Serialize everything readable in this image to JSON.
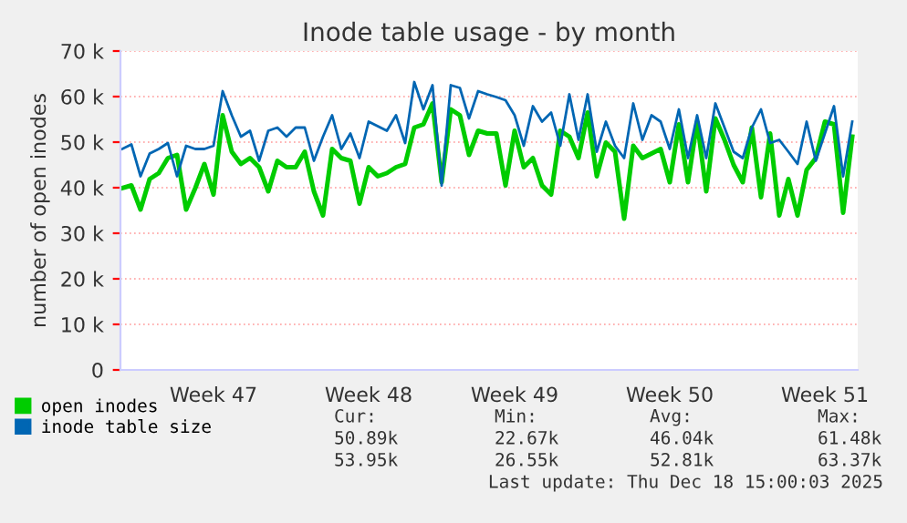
{
  "chart_data": {
    "type": "line",
    "title": "Inode table usage - by month",
    "ylabel": "number of open inodes",
    "categories": [
      null,
      null,
      null,
      null,
      null,
      null,
      null,
      null,
      null,
      null,
      "Week 47",
      null,
      null,
      null,
      null,
      null,
      null,
      null,
      null,
      null,
      null,
      null,
      null,
      null,
      null,
      null,
      null,
      "Week 48",
      null,
      null,
      null,
      null,
      null,
      null,
      null,
      null,
      null,
      null,
      null,
      null,
      null,
      null,
      null,
      "Week 49",
      null,
      null,
      null,
      null,
      null,
      null,
      null,
      null,
      null,
      null,
      null,
      null,
      null,
      null,
      null,
      null,
      "Week 50",
      null,
      null,
      null,
      null,
      null,
      null,
      null,
      null,
      null,
      null,
      null,
      null,
      null,
      null,
      null,
      null,
      "Week 51",
      null,
      null,
      null
    ],
    "ylim": [
      0,
      70000
    ],
    "yticks": [
      {
        "value": 0,
        "label": "0"
      },
      {
        "value": 10000,
        "label": "10 k"
      },
      {
        "value": 20000,
        "label": "20 k"
      },
      {
        "value": 30000,
        "label": "30 k"
      },
      {
        "value": 40000,
        "label": "40 k"
      },
      {
        "value": 50000,
        "label": "50 k"
      },
      {
        "value": 60000,
        "label": "60 k"
      },
      {
        "value": 70000,
        "label": "70 k"
      }
    ],
    "grid": "y",
    "legend": "bottom",
    "marker": "none",
    "line_style": "solid",
    "series": [
      {
        "name": "open inodes",
        "color": "#00cc00",
        "values": [
          39900,
          40500,
          35200,
          41900,
          43200,
          46500,
          47200,
          35200,
          39900,
          45200,
          38500,
          55900,
          47900,
          45200,
          46500,
          44500,
          39200,
          45900,
          44500,
          44500,
          47900,
          39200,
          33900,
          48500,
          46500,
          45900,
          36500,
          44500,
          42500,
          43200,
          44500,
          45200,
          53200,
          53900,
          58500,
          41200,
          57200,
          55900,
          47200,
          52500,
          51900,
          51900,
          40500,
          52500,
          44500,
          46500,
          40500,
          38500,
          52500,
          51200,
          46500,
          56500,
          42500,
          49900,
          47900,
          33200,
          49200,
          46500,
          47500,
          48500,
          41200,
          53900,
          41200,
          54500,
          39200,
          55200,
          50500,
          45000,
          41200,
          53200,
          37900,
          51900,
          33900,
          41900,
          33900,
          43900,
          46500,
          54500,
          53900,
          34500,
          51200
        ]
      },
      {
        "name": "inode table size",
        "color": "#0066b3",
        "values": [
          48500,
          49500,
          42500,
          47500,
          48500,
          49800,
          42500,
          49200,
          48500,
          48500,
          49200,
          61200,
          55900,
          51200,
          52500,
          45900,
          52500,
          53200,
          51200,
          53200,
          53200,
          45900,
          51200,
          55900,
          48500,
          51900,
          46500,
          54500,
          53500,
          52500,
          55900,
          49800,
          63200,
          57200,
          62500,
          40500,
          62500,
          61900,
          55200,
          61200,
          60500,
          59900,
          59200,
          55900,
          49200,
          57900,
          54500,
          56500,
          49200,
          60500,
          50500,
          60500,
          47900,
          54500,
          49200,
          46500,
          58500,
          50500,
          55900,
          54500,
          48500,
          57200,
          46500,
          55900,
          46500,
          58500,
          53200,
          47900,
          46500,
          53200,
          57200,
          49800,
          50500,
          47900,
          45200,
          54500,
          45900,
          51900,
          57900,
          42500,
          54500
        ]
      }
    ],
    "annotations": [
      "Cur:",
      "Min:",
      "Avg:",
      "Max:",
      "50.89k",
      "22.67k",
      "46.04k",
      "61.48k",
      "53.95k",
      "26.55k",
      "52.81k",
      "63.37k",
      "Last update: Thu Dec 18 15:00:03 2025"
    ]
  }
}
